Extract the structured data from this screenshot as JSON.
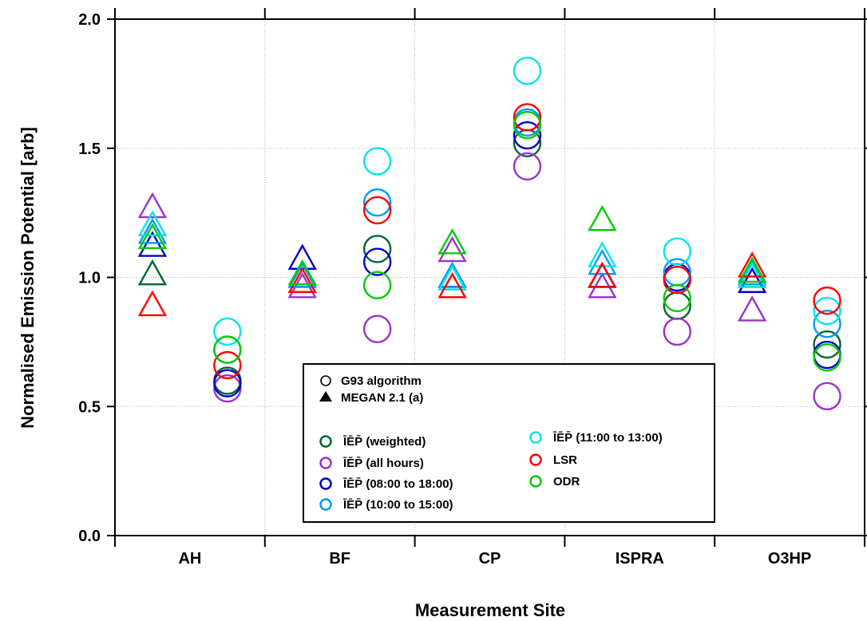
{
  "chart_data": {
    "type": "scatter",
    "title": "",
    "xlabel": "Measurement Site",
    "ylabel": "Normalised Emission Potential [arb]",
    "categories": [
      "AH",
      "BF",
      "CP",
      "ISPRA",
      "O3HP"
    ],
    "ylim": [
      0,
      2.0
    ],
    "yticks": [
      "0.0",
      "0.5",
      "1.0",
      "1.5",
      "2.0"
    ],
    "grid": true,
    "legend_position": "bottom-center",
    "marker_legend": [
      {
        "marker": "circle",
        "label": "G93 algorithm"
      },
      {
        "marker": "triangle",
        "label": "MEGAN 2.1 (a)"
      }
    ],
    "series": [
      {
        "name": "ĪĒP̄ (weighted)",
        "color": "#006633",
        "triangle": [
          1.01,
          1.0,
          1.0,
          1.0,
          1.0
        ],
        "circle": [
          0.6,
          1.11,
          1.52,
          0.89,
          0.74
        ]
      },
      {
        "name": "ĪĒP̄ (all hours)",
        "color": "#9933cc",
        "triangle": [
          1.27,
          0.96,
          1.1,
          0.96,
          0.87
        ],
        "circle": [
          0.57,
          0.8,
          1.43,
          0.79,
          0.54
        ]
      },
      {
        "name": "ĪĒP̄ (08:00 to 18:00)",
        "color": "#0000cc",
        "triangle": [
          1.12,
          1.07,
          1.0,
          1.0,
          0.98
        ],
        "circle": [
          0.59,
          1.06,
          1.55,
          1.0,
          0.7
        ]
      },
      {
        "name": "ĪĒP̄ (10:00 to 15:00)",
        "color": "#0099ff",
        "triangle": [
          1.17,
          1.0,
          1.0,
          1.05,
          1.01
        ],
        "circle": [
          0.72,
          1.29,
          1.6,
          1.02,
          0.82
        ]
      },
      {
        "name": "ĪĒP̄ (11:00 to 13:00)",
        "color": "#00e5ee",
        "triangle": [
          1.2,
          0.98,
          0.99,
          1.08,
          1.0
        ],
        "circle": [
          0.79,
          1.45,
          1.8,
          1.1,
          0.87
        ]
      },
      {
        "name": "LSR",
        "color": "#ff0000",
        "triangle": [
          0.89,
          0.98,
          0.96,
          1.0,
          1.04
        ],
        "circle": [
          0.66,
          1.26,
          1.62,
          0.99,
          0.91
        ]
      },
      {
        "name": "ODR",
        "color": "#00cc00",
        "triangle": [
          1.15,
          1.01,
          1.13,
          1.22,
          1.02
        ],
        "circle": [
          0.72,
          0.97,
          1.59,
          0.92,
          0.69
        ]
      }
    ]
  }
}
